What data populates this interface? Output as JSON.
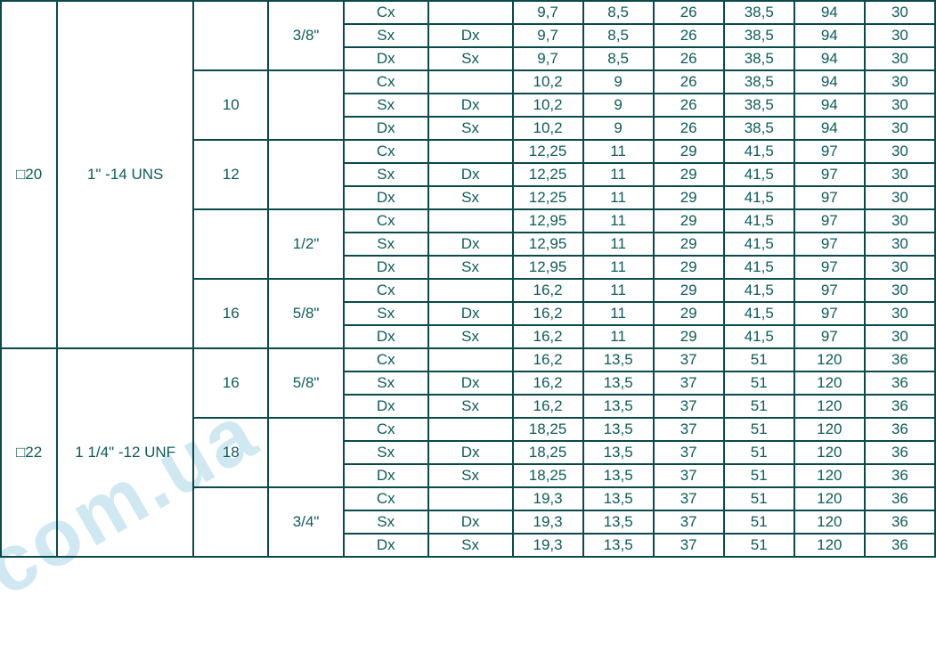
{
  "watermark": {
    "text": "d.com.ua"
  },
  "table": {
    "text_color": "#0d5b5b",
    "border_color": "#0a4a4a",
    "background_color": "#ffffff",
    "font_size": 17
  },
  "groups": [
    {
      "code": "□20",
      "thread": "1\" -14 UNS",
      "blocks": [
        {
          "c3": "",
          "c4": "3/8\"",
          "rows": [
            [
              "Cx",
              "",
              "9,7",
              "8,5",
              "26",
              "38,5",
              "94",
              "30"
            ],
            [
              "Sx",
              "Dx",
              "9,7",
              "8,5",
              "26",
              "38,5",
              "94",
              "30"
            ],
            [
              "Dx",
              "Sx",
              "9,7",
              "8,5",
              "26",
              "38,5",
              "94",
              "30"
            ]
          ]
        },
        {
          "c3": "10",
          "c4": "",
          "rows": [
            [
              "Cx",
              "",
              "10,2",
              "9",
              "26",
              "38,5",
              "94",
              "30"
            ],
            [
              "Sx",
              "Dx",
              "10,2",
              "9",
              "26",
              "38,5",
              "94",
              "30"
            ],
            [
              "Dx",
              "Sx",
              "10,2",
              "9",
              "26",
              "38,5",
              "94",
              "30"
            ]
          ]
        },
        {
          "c3": "12",
          "c4": "",
          "rows": [
            [
              "Cx",
              "",
              "12,25",
              "11",
              "29",
              "41,5",
              "97",
              "30"
            ],
            [
              "Sx",
              "Dx",
              "12,25",
              "11",
              "29",
              "41,5",
              "97",
              "30"
            ],
            [
              "Dx",
              "Sx",
              "12,25",
              "11",
              "29",
              "41,5",
              "97",
              "30"
            ]
          ]
        },
        {
          "c3": "",
          "c4": "1/2\"",
          "rows": [
            [
              "Cx",
              "",
              "12,95",
              "11",
              "29",
              "41,5",
              "97",
              "30"
            ],
            [
              "Sx",
              "Dx",
              "12,95",
              "11",
              "29",
              "41,5",
              "97",
              "30"
            ],
            [
              "Dx",
              "Sx",
              "12,95",
              "11",
              "29",
              "41,5",
              "97",
              "30"
            ]
          ]
        },
        {
          "c3": "16",
          "c4": "5/8\"",
          "rows": [
            [
              "Cx",
              "",
              "16,2",
              "11",
              "29",
              "41,5",
              "97",
              "30"
            ],
            [
              "Sx",
              "Dx",
              "16,2",
              "11",
              "29",
              "41,5",
              "97",
              "30"
            ],
            [
              "Dx",
              "Sx",
              "16,2",
              "11",
              "29",
              "41,5",
              "97",
              "30"
            ]
          ]
        }
      ]
    },
    {
      "code": "□22",
      "thread": "1 1/4\" -12 UNF",
      "blocks": [
        {
          "c3": "16",
          "c4": "5/8\"",
          "rows": [
            [
              "Cx",
              "",
              "16,2",
              "13,5",
              "37",
              "51",
              "120",
              "36"
            ],
            [
              "Sx",
              "Dx",
              "16,2",
              "13,5",
              "37",
              "51",
              "120",
              "36"
            ],
            [
              "Dx",
              "Sx",
              "16,2",
              "13,5",
              "37",
              "51",
              "120",
              "36"
            ]
          ]
        },
        {
          "c3": "18",
          "c4": "",
          "rows": [
            [
              "Cx",
              "",
              "18,25",
              "13,5",
              "37",
              "51",
              "120",
              "36"
            ],
            [
              "Sx",
              "Dx",
              "18,25",
              "13,5",
              "37",
              "51",
              "120",
              "36"
            ],
            [
              "Dx",
              "Sx",
              "18,25",
              "13,5",
              "37",
              "51",
              "120",
              "36"
            ]
          ]
        },
        {
          "c3": "",
          "c4": "3/4\"",
          "rows": [
            [
              "Cx",
              "",
              "19,3",
              "13,5",
              "37",
              "51",
              "120",
              "36"
            ],
            [
              "Sx",
              "Dx",
              "19,3",
              "13,5",
              "37",
              "51",
              "120",
              "36"
            ],
            [
              "Dx",
              "Sx",
              "19,3",
              "13,5",
              "37",
              "51",
              "120",
              "36"
            ]
          ]
        }
      ]
    }
  ]
}
